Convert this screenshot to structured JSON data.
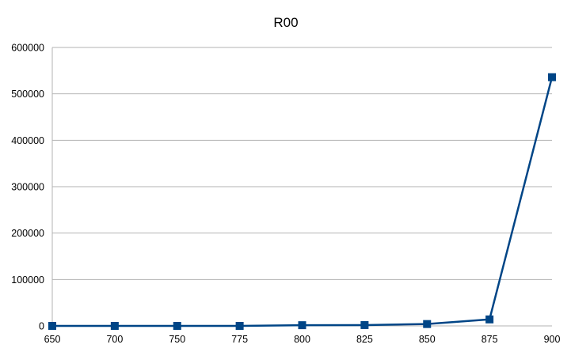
{
  "chart_data": {
    "type": "line",
    "title": "R00",
    "xlabel": "",
    "ylabel": "",
    "categories": [
      "650",
      "700",
      "750",
      "775",
      "800",
      "825",
      "850",
      "875",
      "900"
    ],
    "series": [
      {
        "values": [
          0,
          0,
          0,
          0,
          1500,
          1800,
          4000,
          14000,
          536000
        ],
        "color": "#004586",
        "marker": "square"
      }
    ],
    "ylim": [
      0,
      600000
    ],
    "yticks": [
      0,
      100000,
      200000,
      300000,
      400000,
      500000,
      600000
    ],
    "ytick_labels": [
      "0",
      "100000",
      "200000",
      "300000",
      "400000",
      "500000",
      "600000"
    ],
    "grid": "horizontal",
    "legend": "none"
  }
}
